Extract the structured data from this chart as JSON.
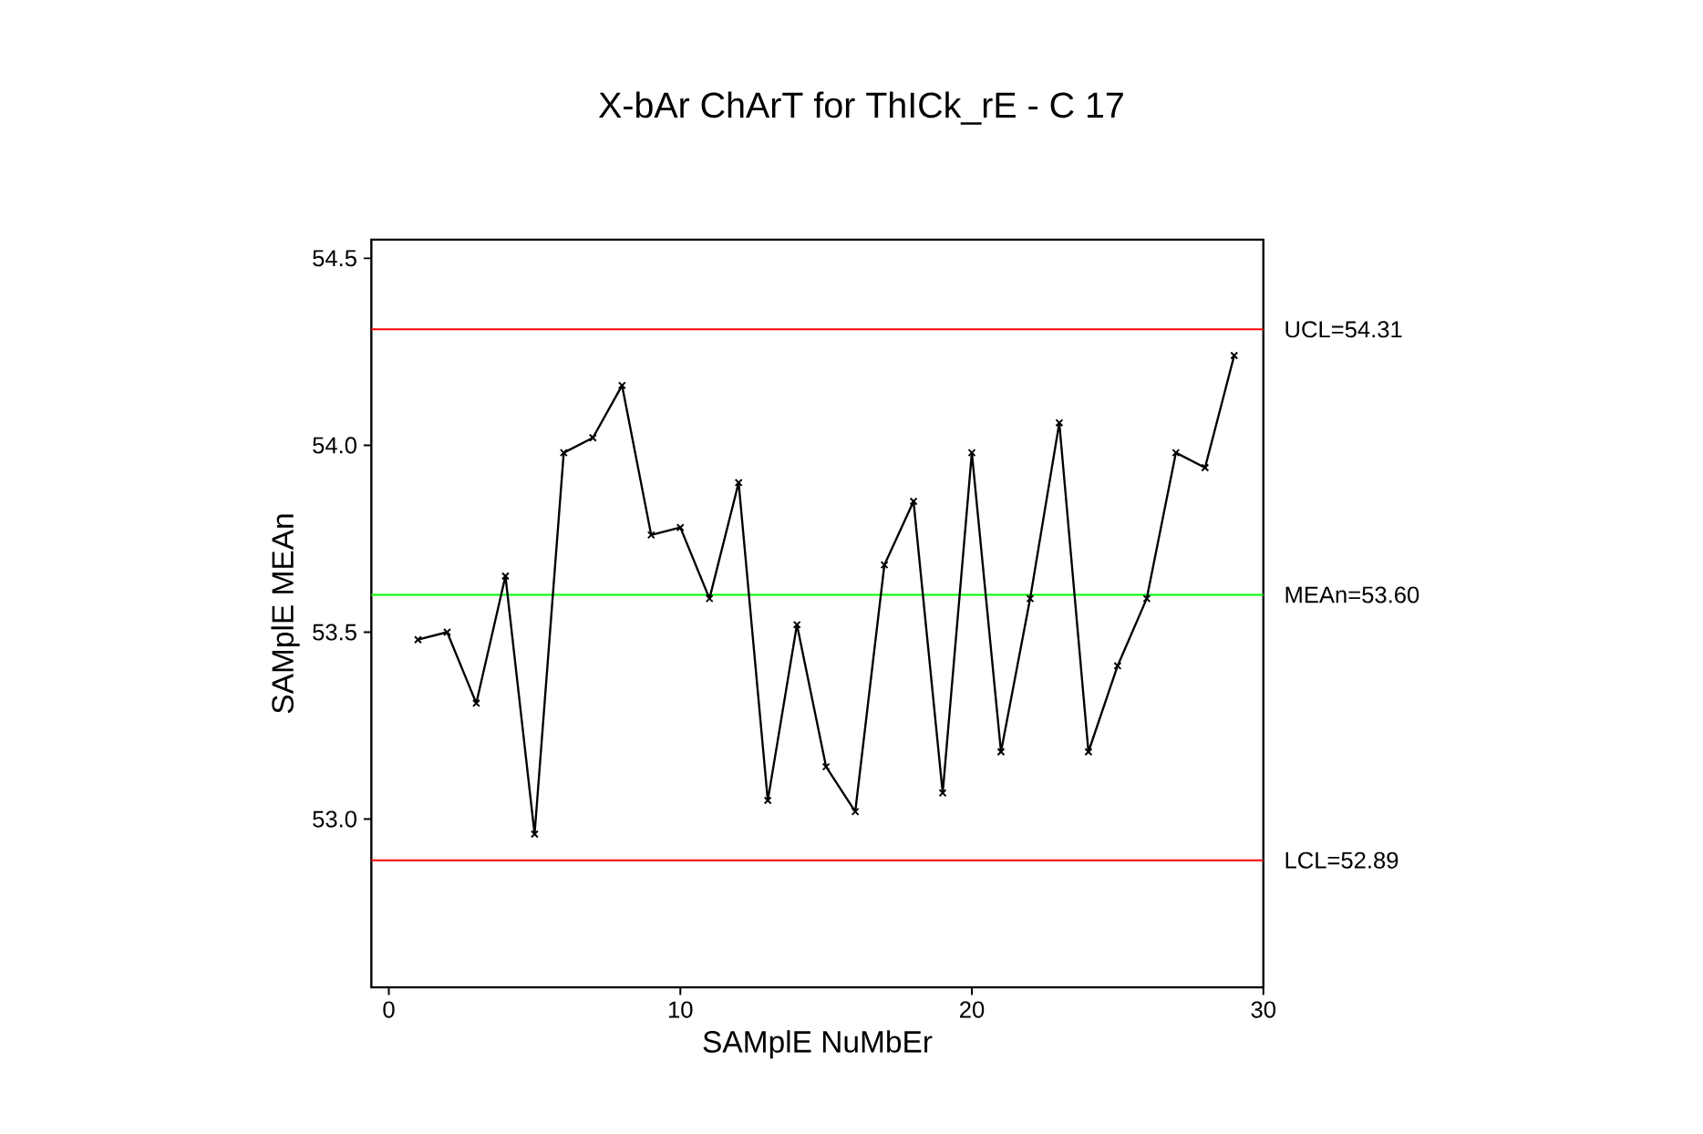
{
  "chart_data": {
    "type": "line",
    "title": "X-bAr ChArT for ThICk_rE - C 17",
    "xlabel": "SAMplE NuMbEr",
    "ylabel": "SAMplE MEAn",
    "x": [
      1,
      2,
      3,
      4,
      5,
      6,
      7,
      8,
      9,
      10,
      11,
      12,
      13,
      14,
      15,
      16,
      17,
      18,
      19,
      20,
      21,
      22,
      23,
      24,
      25,
      26,
      27,
      28,
      29
    ],
    "series": [
      {
        "color": "#000000",
        "values": [
          53.48,
          53.5,
          53.31,
          53.65,
          52.96,
          53.98,
          54.02,
          54.16,
          53.76,
          53.78,
          53.59,
          53.9,
          53.05,
          53.52,
          53.14,
          53.02,
          53.68,
          53.85,
          53.07,
          53.98,
          53.18,
          53.59,
          54.06,
          53.18,
          53.41,
          53.59,
          53.98,
          53.94,
          54.24
        ]
      }
    ],
    "xlim": [
      -0.6,
      30
    ],
    "ylim": [
      52.55,
      54.55
    ],
    "xticks": [
      0,
      10,
      20,
      30
    ],
    "yticks": [
      {
        "value": 53.0,
        "label": "53.0"
      },
      {
        "value": 53.5,
        "label": "53.5"
      },
      {
        "value": 54.0,
        "label": "54.0"
      },
      {
        "value": 54.5,
        "label": "54.5"
      }
    ],
    "ref_lines": [
      {
        "axis": "y",
        "value": 54.31,
        "label": "UCL=54.31",
        "color": "#ff0000"
      },
      {
        "axis": "y",
        "value": 53.6,
        "label": "MEAn=53.60",
        "color": "#00ff00"
      },
      {
        "axis": "y",
        "value": 52.89,
        "label": "LCL=52.89",
        "color": "#ff0000"
      }
    ],
    "marker": "cross",
    "line_style": "solid",
    "grid": false
  }
}
